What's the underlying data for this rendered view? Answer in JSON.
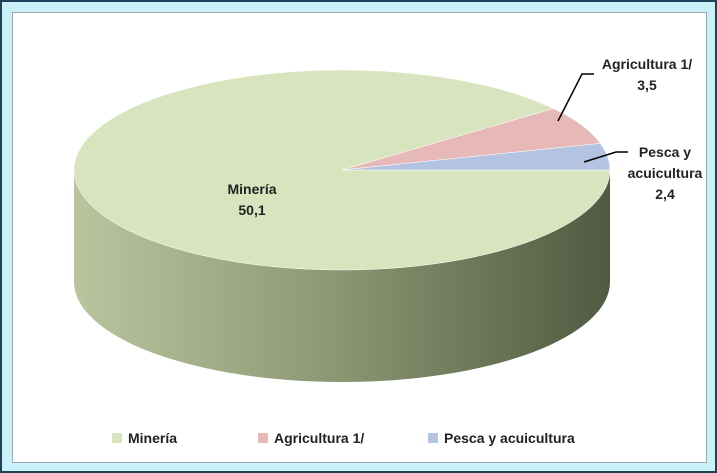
{
  "chart_data": {
    "type": "pie",
    "categories": [
      "Minería",
      "Agricultura 1/",
      "Pesca y acuicultura"
    ],
    "values": [
      50.1,
      3.5,
      2.4
    ],
    "value_labels": [
      "50,1",
      "3,5",
      "2,4"
    ],
    "colors": [
      "#d7e4bd",
      "#e6b9b8",
      "#b4c3e2"
    ],
    "legend": "bottom"
  }
}
